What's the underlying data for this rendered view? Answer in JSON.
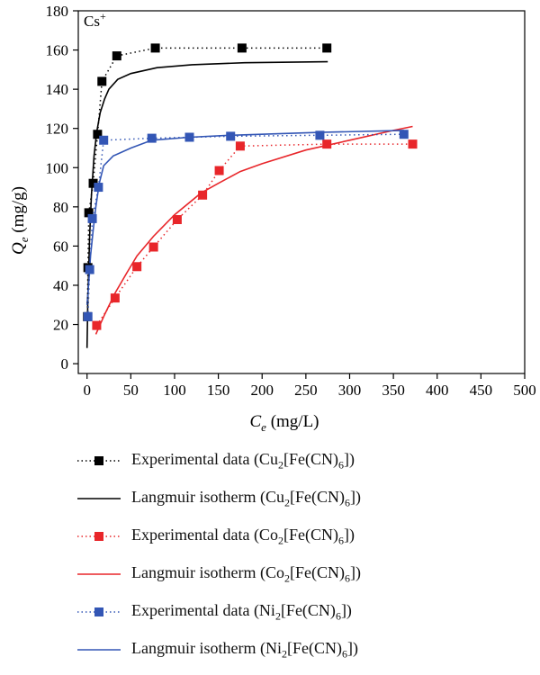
{
  "chart_data": {
    "type": "scatter",
    "annotation": "Cs",
    "annotation_sup": "+",
    "xlabel": {
      "main": "C",
      "sub": "e",
      "unit": " (mg/L)"
    },
    "ylabel": {
      "main": "Q",
      "sub": "e",
      "unit": " (mg/g)"
    },
    "xlim": [
      -10,
      500
    ],
    "ylim": [
      -5,
      180
    ],
    "xticks": [
      0,
      50,
      100,
      150,
      200,
      250,
      300,
      350,
      400,
      450,
      500
    ],
    "yticks": [
      0,
      20,
      40,
      60,
      80,
      100,
      120,
      140,
      160,
      180
    ],
    "grid": false,
    "legend_position": "bottom",
    "series": [
      {
        "name": "Experimental data (Cu2[Fe(CN)6])",
        "color": "#000000",
        "style": "dotted-square",
        "points": [
          [
            0.5,
            24
          ],
          [
            1,
            49
          ],
          [
            2,
            77
          ],
          [
            7,
            92
          ],
          [
            12,
            117
          ],
          [
            17,
            144
          ],
          [
            34,
            157
          ],
          [
            78,
            161
          ],
          [
            177,
            161
          ],
          [
            274,
            161
          ]
        ]
      },
      {
        "name": "Langmuir isotherm (Cu2[Fe(CN)6])",
        "color": "#000000",
        "style": "solid",
        "points": [
          [
            0,
            8
          ],
          [
            1,
            35
          ],
          [
            2,
            50
          ],
          [
            3,
            65
          ],
          [
            5,
            86
          ],
          [
            8,
            106
          ],
          [
            11,
            118
          ],
          [
            15,
            128
          ],
          [
            20,
            135
          ],
          [
            25,
            140
          ],
          [
            35,
            145
          ],
          [
            50,
            148
          ],
          [
            80,
            151
          ],
          [
            120,
            152.5
          ],
          [
            180,
            153.5
          ],
          [
            275,
            154
          ]
        ]
      },
      {
        "name": "Experimental data (Co2[Fe(CN)6])",
        "color": "#e8262a",
        "style": "dotted-square",
        "points": [
          [
            11,
            19.5
          ],
          [
            32,
            33.5
          ],
          [
            57,
            49.5
          ],
          [
            76,
            59.5
          ],
          [
            103,
            73.5
          ],
          [
            132,
            86
          ],
          [
            151,
            98.5
          ],
          [
            175,
            111
          ],
          [
            274,
            112
          ],
          [
            372,
            112
          ]
        ]
      },
      {
        "name": "Langmuir isotherm (Co2[Fe(CN)6])",
        "color": "#e8262a",
        "style": "solid",
        "points": [
          [
            10,
            15
          ],
          [
            20,
            25
          ],
          [
            32,
            36
          ],
          [
            45,
            46
          ],
          [
            57,
            55
          ],
          [
            76,
            65
          ],
          [
            100,
            76
          ],
          [
            130,
            87
          ],
          [
            150,
            92
          ],
          [
            175,
            98
          ],
          [
            200,
            102
          ],
          [
            250,
            109
          ],
          [
            300,
            114
          ],
          [
            350,
            119
          ],
          [
            372,
            121
          ]
        ]
      },
      {
        "name": "Experimental data (Ni2[Fe(CN)6])",
        "color": "#3356b5",
        "style": "dotted-square",
        "points": [
          [
            1,
            24
          ],
          [
            3,
            48
          ],
          [
            6,
            74
          ],
          [
            13,
            90
          ],
          [
            19,
            114
          ],
          [
            74,
            115
          ],
          [
            117,
            115.5
          ],
          [
            164,
            116
          ],
          [
            266,
            116.5
          ],
          [
            362,
            117
          ]
        ]
      },
      {
        "name": "Langmuir isotherm (Ni2[Fe(CN)6])",
        "color": "#3356b5",
        "style": "solid",
        "points": [
          [
            0,
            30
          ],
          [
            2,
            42
          ],
          [
            4,
            55
          ],
          [
            7,
            68
          ],
          [
            10,
            80
          ],
          [
            14,
            92
          ],
          [
            19,
            101
          ],
          [
            30,
            106
          ],
          [
            50,
            110
          ],
          [
            74,
            114
          ],
          [
            117,
            115.5
          ],
          [
            164,
            116.5
          ],
          [
            266,
            118
          ],
          [
            362,
            119
          ]
        ]
      }
    ]
  },
  "legend": [
    {
      "prefix": "Experimental data (Cu",
      "s1": "2",
      "mid": "[Fe(CN)",
      "s2": "6",
      "suffix": "])"
    },
    {
      "prefix": "Langmuir isotherm (Cu",
      "s1": "2",
      "mid": "[Fe(CN)",
      "s2": "6",
      "suffix": "])"
    },
    {
      "prefix": "Experimental data (Co",
      "s1": "2",
      "mid": "[Fe(CN)",
      "s2": "6",
      "suffix": "])"
    },
    {
      "prefix": "Langmuir isotherm (Co",
      "s1": "2",
      "mid": "[Fe(CN)",
      "s2": "6",
      "suffix": "])"
    },
    {
      "prefix": "Experimental data (Ni",
      "s1": "2",
      "mid": "[Fe(CN)",
      "s2": "6",
      "suffix": "])"
    },
    {
      "prefix": "Langmuir isotherm (Ni",
      "s1": "2",
      "mid": "[Fe(CN)",
      "s2": "6",
      "suffix": "])"
    }
  ]
}
